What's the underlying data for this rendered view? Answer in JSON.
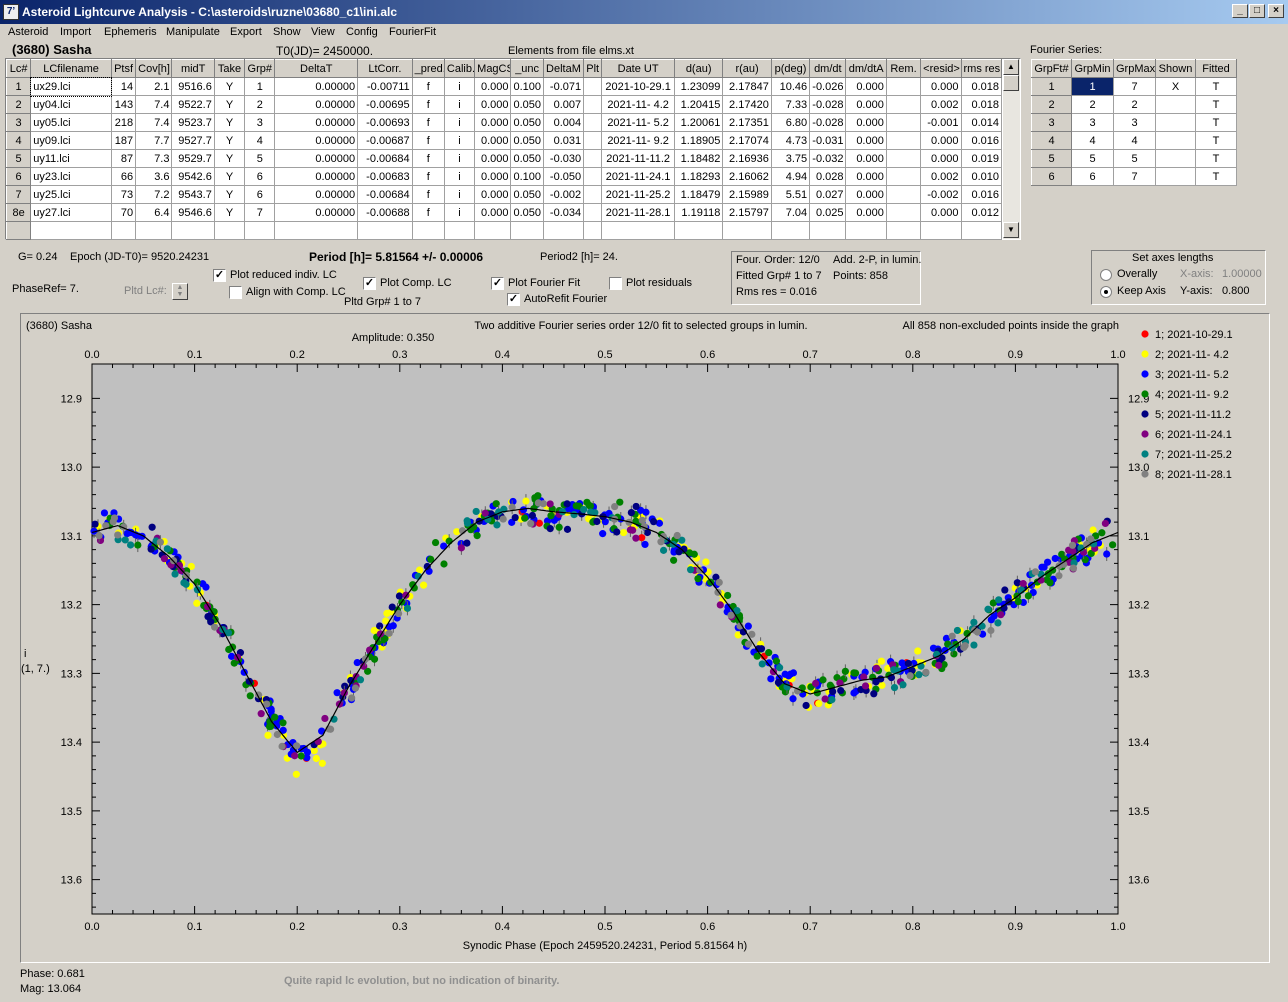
{
  "window": {
    "title": "Asteroid Lightcurve Analysis - C:\\asteroids\\ruzne\\03680_c1\\ini.alc",
    "icon_glyph": "7’",
    "controls": [
      "_",
      "□",
      "×"
    ]
  },
  "menu": [
    "Asteroid",
    "Import",
    "Ephemeris",
    "Manipulate",
    "Export",
    "Show",
    "View",
    "Config",
    "FourierFit"
  ],
  "header": {
    "asteroid": "(3680) Sasha",
    "t0": "T0(JD)= 2450000.",
    "elements": "Elements from file elms.xt",
    "fourier_label": "Fourier Series:"
  },
  "lc_table": {
    "columns": [
      "Lc#",
      "LCfilename",
      "Ptsf",
      "Cov[h]",
      "midT",
      "Take",
      "Grp#",
      "DeltaT",
      "LtCorr.",
      "_pred.",
      "Calib.",
      "MagCS",
      "_unc",
      "DeltaM",
      "Plt",
      "Date UT",
      "d(au)",
      "r(au)",
      "p(deg)",
      "dm/dt",
      "dm/dtA",
      "Rem.",
      "<resid>",
      "rms res"
    ],
    "rows": [
      [
        "1",
        "ux29.lci",
        "14",
        "2.1",
        "9516.6",
        "Y",
        "1",
        "0.00000",
        "-0.00711",
        "f",
        "i",
        "0.000",
        "0.100",
        "-0.071",
        "",
        "2021-10-29.1",
        "1.23099",
        "2.17847",
        "10.46",
        "-0.026",
        "0.000",
        "",
        "0.000",
        "0.018"
      ],
      [
        "2",
        "uy04.lci",
        "143",
        "7.4",
        "9522.7",
        "Y",
        "2",
        "0.00000",
        "-0.00695",
        "f",
        "i",
        "0.000",
        "0.050",
        "0.007",
        "",
        "2021-11- 4.2",
        "1.20415",
        "2.17420",
        "7.33",
        "-0.028",
        "0.000",
        "",
        "0.002",
        "0.018"
      ],
      [
        "3",
        "uy05.lci",
        "218",
        "7.4",
        "9523.7",
        "Y",
        "3",
        "0.00000",
        "-0.00693",
        "f",
        "i",
        "0.000",
        "0.050",
        "0.004",
        "",
        "2021-11- 5.2",
        "1.20061",
        "2.17351",
        "6.80",
        "-0.028",
        "0.000",
        "",
        "-0.001",
        "0.014"
      ],
      [
        "4",
        "uy09.lci",
        "187",
        "7.7",
        "9527.7",
        "Y",
        "4",
        "0.00000",
        "-0.00687",
        "f",
        "i",
        "0.000",
        "0.050",
        "0.031",
        "",
        "2021-11- 9.2",
        "1.18905",
        "2.17074",
        "4.73",
        "-0.031",
        "0.000",
        "",
        "0.000",
        "0.016"
      ],
      [
        "5",
        "uy11.lci",
        "87",
        "7.3",
        "9529.7",
        "Y",
        "5",
        "0.00000",
        "-0.00684",
        "f",
        "i",
        "0.000",
        "0.050",
        "-0.030",
        "",
        "2021-11-11.2",
        "1.18482",
        "2.16936",
        "3.75",
        "-0.032",
        "0.000",
        "",
        "0.000",
        "0.019"
      ],
      [
        "6",
        "uy23.lci",
        "66",
        "3.6",
        "9542.6",
        "Y",
        "6",
        "0.00000",
        "-0.00683",
        "f",
        "i",
        "0.000",
        "0.100",
        "-0.050",
        "",
        "2021-11-24.1",
        "1.18293",
        "2.16062",
        "4.94",
        "0.028",
        "0.000",
        "",
        "0.002",
        "0.010"
      ],
      [
        "7",
        "uy25.lci",
        "73",
        "7.2",
        "9543.7",
        "Y",
        "6",
        "0.00000",
        "-0.00684",
        "f",
        "i",
        "0.000",
        "0.050",
        "-0.002",
        "",
        "2021-11-25.2",
        "1.18479",
        "2.15989",
        "5.51",
        "0.027",
        "0.000",
        "",
        "-0.002",
        "0.016"
      ],
      [
        "8e",
        "uy27.lci",
        "70",
        "6.4",
        "9546.6",
        "Y",
        "7",
        "0.00000",
        "-0.00688",
        "f",
        "i",
        "0.000",
        "0.050",
        "-0.034",
        "",
        "2021-11-28.1",
        "1.19118",
        "2.15797",
        "7.04",
        "0.025",
        "0.000",
        "",
        "0.000",
        "0.012"
      ]
    ]
  },
  "fourier_table": {
    "columns": [
      "GrpFt#",
      "GrpMin",
      "GrpMax",
      "Shown",
      "Fitted"
    ],
    "rows": [
      [
        "1",
        "1",
        "7",
        "X",
        "T"
      ],
      [
        "2",
        "2",
        "2",
        "",
        "T"
      ],
      [
        "3",
        "3",
        "3",
        "",
        "T"
      ],
      [
        "4",
        "4",
        "4",
        "",
        "T"
      ],
      [
        "5",
        "5",
        "5",
        "",
        "T"
      ],
      [
        "6",
        "6",
        "7",
        "",
        "T"
      ]
    ]
  },
  "controls": {
    "g": "G= 0.24",
    "epoch": "Epoch (JD-T0)= 9520.24231",
    "period": "Period [h]= 5.81564 +/- 0.00006",
    "period2": "Period2 [h]= 24.",
    "phaseref": "PhaseRef= 7.",
    "pltd_lc": "Pltd Lc#:",
    "plot_reduced": "Plot reduced indiv. LC",
    "align_comp": "Align with Comp. LC",
    "plot_comp": "Plot Comp. LC",
    "pltd_grp": "Pltd Grp#  1   to   7",
    "plot_fourier": "Plot Fourier Fit",
    "autorefit": "AutoRefit Fourier",
    "plot_resid": "Plot residuals",
    "info_box": [
      "Four. Order: 12/0",
      "Add. 2-P, in lumin.",
      "Fitted Grp# 1 to 7",
      "Points: 858",
      "Rms res      = 0.016"
    ],
    "axes_title": "Set axes lengths",
    "overally": "Overally",
    "keep_axis": "Keep Axis",
    "x_axis_label": "X-axis:",
    "x_axis_value": "1.00000",
    "y_axis_label": "Y-axis:",
    "y_axis_value": "0.800"
  },
  "plot": {
    "top_left": "(3680) Sasha",
    "top_center1": "Two additive Fourier series order 12/0 fit to selected groups in lumin.",
    "top_center2": "Amplitude: 0.350",
    "top_right": "All 858 non-excluded points inside the graph",
    "y_label1": "i",
    "y_label2": "(1, 7.)",
    "x_label": "Synodic Phase (Epoch 2459520.24231, Period 5.81564 h)",
    "phase_readout": "Phase:  0.681",
    "mag_readout": "Mag:    13.064",
    "note": "Quite rapid lc evolution, but no indication of binarity."
  },
  "chart_data": {
    "type": "scatter",
    "xlabel": "Synodic Phase (Epoch 2459520.24231, Period 5.81564 h)",
    "ylabel": "i (1, 7.)",
    "xlim": [
      0.0,
      1.0
    ],
    "ylim": [
      13.65,
      12.85
    ],
    "y_inverted": true,
    "x_ticks": [
      "0.0",
      "0.1",
      "0.2",
      "0.3",
      "0.4",
      "0.5",
      "0.6",
      "0.7",
      "0.8",
      "0.9",
      "1.0"
    ],
    "y_ticks": [
      "12.9",
      "13.0",
      "13.1",
      "13.2",
      "13.3",
      "13.4",
      "13.5",
      "13.6"
    ],
    "legend_position": "right",
    "series": [
      {
        "name": "1; 2021-10-29.1",
        "color": "#ff0000",
        "phase_range": [
          0.0,
          1.0
        ]
      },
      {
        "name": "2; 2021-11- 4.2",
        "color": "#ffff00",
        "phase_range": [
          0.0,
          1.0
        ]
      },
      {
        "name": "3; 2021-11- 5.2",
        "color": "#0000ff",
        "phase_range": [
          0.0,
          1.0
        ]
      },
      {
        "name": "4; 2021-11- 9.2",
        "color": "#008000",
        "phase_range": [
          0.0,
          1.0
        ]
      },
      {
        "name": "5; 2021-11-11.2",
        "color": "#000080",
        "phase_range": [
          0.0,
          1.0
        ]
      },
      {
        "name": "6; 2021-11-24.1",
        "color": "#800080",
        "phase_range": [
          0.0,
          1.0
        ]
      },
      {
        "name": "7; 2021-11-25.2",
        "color": "#008080",
        "phase_range": [
          0.0,
          1.0
        ]
      },
      {
        "name": "8; 2021-11-28.1",
        "color": "#808080",
        "phase_range": [
          0.0,
          1.0
        ]
      }
    ],
    "fit_curve": {
      "x": [
        0.0,
        0.025,
        0.05,
        0.075,
        0.1,
        0.125,
        0.15,
        0.175,
        0.2,
        0.225,
        0.25,
        0.275,
        0.3,
        0.325,
        0.35,
        0.375,
        0.4,
        0.425,
        0.45,
        0.475,
        0.5,
        0.525,
        0.55,
        0.575,
        0.6,
        0.625,
        0.65,
        0.675,
        0.7,
        0.725,
        0.75,
        0.775,
        0.8,
        0.825,
        0.85,
        0.875,
        0.9,
        0.925,
        0.95,
        0.975,
        1.0
      ],
      "y": [
        13.095,
        13.085,
        13.1,
        13.13,
        13.17,
        13.23,
        13.3,
        13.37,
        13.415,
        13.39,
        13.32,
        13.26,
        13.2,
        13.15,
        13.11,
        13.08,
        13.065,
        13.06,
        13.065,
        13.068,
        13.072,
        13.08,
        13.095,
        13.12,
        13.16,
        13.21,
        13.27,
        13.315,
        13.33,
        13.32,
        13.31,
        13.305,
        13.29,
        13.275,
        13.25,
        13.215,
        13.19,
        13.16,
        13.135,
        13.11,
        13.095
      ]
    }
  }
}
